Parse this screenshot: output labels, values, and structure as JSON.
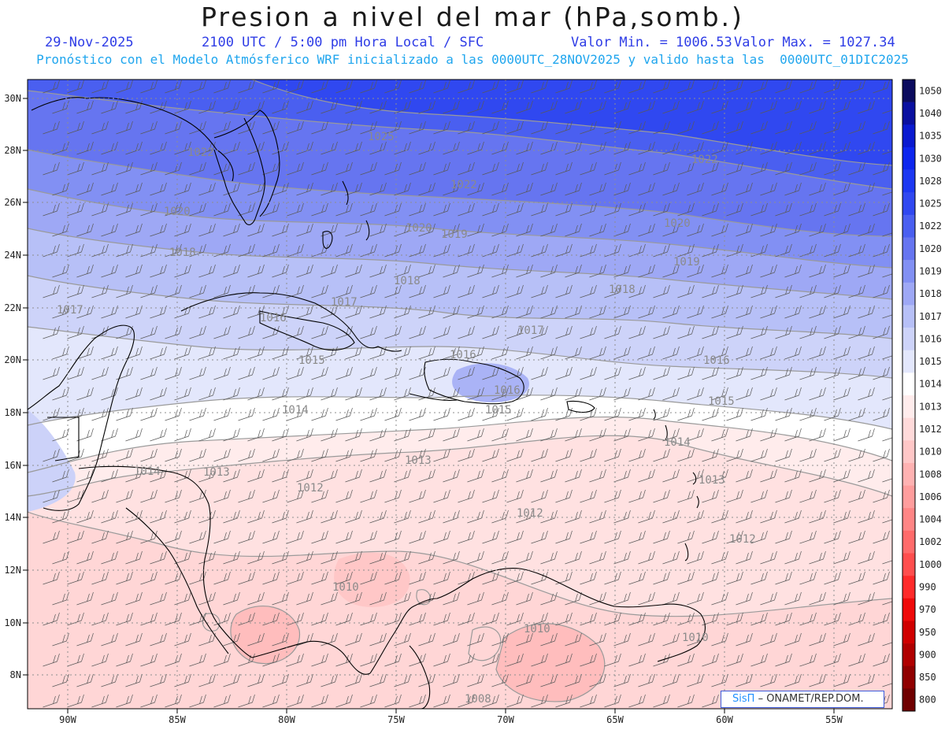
{
  "header": {
    "title": "Presion a nivel del mar (hPa,somb.)",
    "date": "29-Nov-2025",
    "time_info": "2100 UTC / 5:00 pm Hora Local / SFC",
    "min_label": "Valor Min. = 1006.53",
    "max_label": "Valor Max. = 1027.34",
    "model_info": "Pronóstico con el Modelo Atmósferico WRF inicializado a las 0000UTC_28NOV2025 y valido hasta las  0000UTC_01DIC2025"
  },
  "map": {
    "lat_labels": [
      "30N",
      "28N",
      "26N",
      "24N",
      "22N",
      "20N",
      "18N",
      "16N",
      "14N",
      "12N",
      "10N",
      "8N"
    ],
    "lon_labels": [
      "90W",
      "85W",
      "80W",
      "75W",
      "70W",
      "65W",
      "60W",
      "55W"
    ],
    "isobar_labels": [
      "1025",
      "1022",
      "1022",
      "1022",
      "1020",
      "1020",
      "1020",
      "1019",
      "1019",
      "1018",
      "1018",
      "1018",
      "1017",
      "1017",
      "1017",
      "1016",
      "1016",
      "1016",
      "1016",
      "1015",
      "1015",
      "1015",
      "1014",
      "1014",
      "1014",
      "1013",
      "1013",
      "1013",
      "1012",
      "1012",
      "1012",
      "1010",
      "1010",
      "1010",
      "1008"
    ]
  },
  "colorbar": {
    "levels": [
      "1050",
      "1040",
      "1035",
      "1030",
      "1028",
      "1025",
      "1022",
      "1020",
      "1019",
      "1018",
      "1017",
      "1016",
      "1015",
      "1014",
      "1013",
      "1012",
      "1010",
      "1008",
      "1006",
      "1004",
      "1002",
      "1000",
      "990",
      "970",
      "950",
      "900",
      "850",
      "800"
    ],
    "colors": [
      "#0b0b5e",
      "#0a10a0",
      "#0a1ad0",
      "#0d26ee",
      "#1d38f2",
      "#3048f0",
      "#4a5ff0",
      "#6675f0",
      "#8290f3",
      "#9ea8f5",
      "#b7c0f7",
      "#cdd3f9",
      "#e3e7fc",
      "#ffffff",
      "#ffecec",
      "#ffdada",
      "#ffc7c7",
      "#ffb2b2",
      "#ff9d9d",
      "#ff8585",
      "#ff6b6b",
      "#ff4e4e",
      "#ff2a2a",
      "#ef0a0a",
      "#d00000",
      "#b00000",
      "#900000",
      "#700000"
    ]
  },
  "credit": {
    "brand": "SisΠ",
    "text": "– ONAMET/REP.DOM."
  }
}
